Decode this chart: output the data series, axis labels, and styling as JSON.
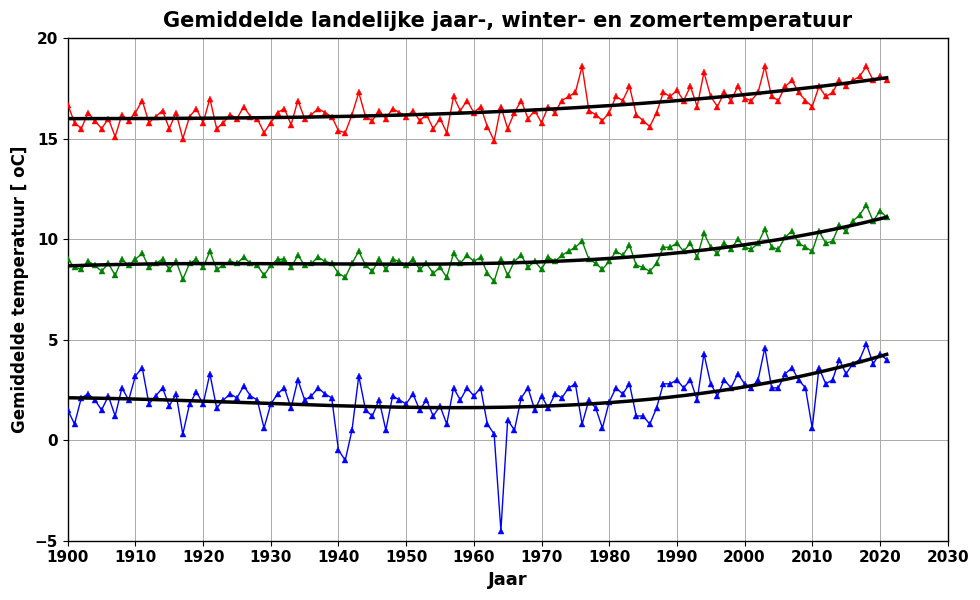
{
  "title": "Gemiddelde landelijke jaar-, winter- en zomertemperatuur",
  "xlabel": "Jaar",
  "ylabel": "Gemiddelde temperatuur [ oC]",
  "xlim": [
    1900,
    2030
  ],
  "ylim": [
    -5,
    20
  ],
  "xticks": [
    1900,
    1910,
    1920,
    1930,
    1940,
    1950,
    1960,
    1970,
    1980,
    1990,
    2000,
    2010,
    2020,
    2030
  ],
  "yticks": [
    -5,
    0,
    5,
    10,
    15,
    20
  ],
  "summer_color": "#FF0000",
  "annual_color": "#008000",
  "winter_color": "#0000FF",
  "trend_color": "#000000",
  "years": [
    1900,
    1901,
    1902,
    1903,
    1904,
    1905,
    1906,
    1907,
    1908,
    1909,
    1910,
    1911,
    1912,
    1913,
    1914,
    1915,
    1916,
    1917,
    1918,
    1919,
    1920,
    1921,
    1922,
    1923,
    1924,
    1925,
    1926,
    1927,
    1928,
    1929,
    1930,
    1931,
    1932,
    1933,
    1934,
    1935,
    1936,
    1937,
    1938,
    1939,
    1940,
    1941,
    1942,
    1943,
    1944,
    1945,
    1946,
    1947,
    1948,
    1949,
    1950,
    1951,
    1952,
    1953,
    1954,
    1955,
    1956,
    1957,
    1958,
    1959,
    1960,
    1961,
    1962,
    1963,
    1964,
    1965,
    1966,
    1967,
    1968,
    1969,
    1970,
    1971,
    1972,
    1973,
    1974,
    1975,
    1976,
    1977,
    1978,
    1979,
    1980,
    1981,
    1982,
    1983,
    1984,
    1985,
    1986,
    1987,
    1988,
    1989,
    1990,
    1991,
    1992,
    1993,
    1994,
    1995,
    1996,
    1997,
    1998,
    1999,
    2000,
    2001,
    2002,
    2003,
    2004,
    2005,
    2006,
    2007,
    2008,
    2009,
    2010,
    2011,
    2012,
    2013,
    2014,
    2015,
    2016,
    2017,
    2018,
    2019,
    2020,
    2021
  ],
  "summer": [
    16.7,
    15.8,
    15.5,
    16.3,
    15.9,
    15.5,
    16.0,
    15.1,
    16.2,
    15.9,
    16.3,
    16.9,
    15.8,
    16.1,
    16.4,
    15.5,
    16.3,
    15.0,
    16.1,
    16.5,
    15.8,
    17.0,
    15.5,
    15.8,
    16.2,
    16.0,
    16.6,
    16.1,
    16.0,
    15.3,
    15.8,
    16.3,
    16.5,
    15.7,
    16.9,
    16.0,
    16.2,
    16.5,
    16.3,
    16.1,
    15.4,
    15.3,
    16.2,
    17.3,
    16.1,
    15.9,
    16.4,
    16.0,
    16.5,
    16.3,
    16.1,
    16.4,
    15.9,
    16.2,
    15.5,
    16.0,
    15.3,
    17.1,
    16.4,
    16.9,
    16.3,
    16.6,
    15.6,
    14.9,
    16.6,
    15.5,
    16.3,
    16.9,
    16.0,
    16.4,
    15.8,
    16.6,
    16.3,
    16.9,
    17.1,
    17.3,
    18.6,
    16.4,
    16.2,
    15.9,
    16.3,
    17.1,
    16.9,
    17.6,
    16.2,
    15.9,
    15.6,
    16.3,
    17.3,
    17.1,
    17.4,
    16.9,
    17.6,
    16.6,
    18.3,
    17.1,
    16.6,
    17.3,
    16.9,
    17.6,
    17.0,
    16.9,
    17.3,
    18.6,
    17.1,
    16.9,
    17.6,
    17.9,
    17.3,
    16.9,
    16.6,
    17.6,
    17.1,
    17.3,
    17.9,
    17.6,
    17.9,
    18.1,
    18.6,
    17.9,
    18.1,
    17.9
  ],
  "annual": [
    9.0,
    8.6,
    8.5,
    8.9,
    8.7,
    8.4,
    8.8,
    8.2,
    9.0,
    8.7,
    9.0,
    9.3,
    8.6,
    8.8,
    9.0,
    8.5,
    8.9,
    8.0,
    8.8,
    9.0,
    8.6,
    9.4,
    8.5,
    8.7,
    8.9,
    8.8,
    9.1,
    8.8,
    8.7,
    8.2,
    8.7,
    9.0,
    9.0,
    8.6,
    9.2,
    8.7,
    8.8,
    9.1,
    8.9,
    8.8,
    8.3,
    8.1,
    8.8,
    9.4,
    8.7,
    8.4,
    9.0,
    8.5,
    9.0,
    8.9,
    8.7,
    9.0,
    8.5,
    8.8,
    8.3,
    8.6,
    8.1,
    9.3,
    8.8,
    9.2,
    8.9,
    9.1,
    8.3,
    7.9,
    9.0,
    8.2,
    8.9,
    9.2,
    8.6,
    8.9,
    8.5,
    9.1,
    8.9,
    9.2,
    9.4,
    9.6,
    9.9,
    9.0,
    8.8,
    8.5,
    8.9,
    9.4,
    9.2,
    9.7,
    8.7,
    8.6,
    8.4,
    8.8,
    9.6,
    9.6,
    9.8,
    9.4,
    9.8,
    9.1,
    10.3,
    9.6,
    9.3,
    9.8,
    9.5,
    10.0,
    9.6,
    9.5,
    9.8,
    10.5,
    9.6,
    9.5,
    10.1,
    10.4,
    9.8,
    9.6,
    9.4,
    10.4,
    9.8,
    9.9,
    10.7,
    10.4,
    10.9,
    11.2,
    11.7,
    10.9,
    11.4,
    11.1
  ],
  "winter": [
    1.5,
    0.8,
    2.1,
    2.3,
    2.0,
    1.5,
    2.2,
    1.2,
    2.6,
    2.0,
    3.2,
    3.6,
    1.8,
    2.2,
    2.6,
    1.7,
    2.3,
    0.3,
    1.8,
    2.4,
    1.8,
    3.3,
    1.6,
    2.0,
    2.3,
    2.1,
    2.7,
    2.2,
    2.0,
    0.6,
    1.8,
    2.3,
    2.6,
    1.6,
    3.0,
    2.0,
    2.2,
    2.6,
    2.3,
    2.1,
    -0.5,
    -1.0,
    0.5,
    3.2,
    1.5,
    1.2,
    2.0,
    0.5,
    2.2,
    2.0,
    1.8,
    2.3,
    1.5,
    2.0,
    1.2,
    1.7,
    0.8,
    2.6,
    2.0,
    2.6,
    2.2,
    2.6,
    0.8,
    0.3,
    -4.5,
    1.0,
    0.5,
    2.1,
    2.6,
    1.5,
    2.2,
    1.6,
    2.3,
    2.1,
    2.6,
    2.8,
    0.8,
    2.0,
    1.6,
    0.6,
    1.9,
    2.6,
    2.3,
    2.8,
    1.2,
    1.2,
    0.8,
    1.6,
    2.8,
    2.8,
    3.0,
    2.6,
    3.0,
    2.0,
    4.3,
    2.8,
    2.2,
    3.0,
    2.6,
    3.3,
    2.8,
    2.6,
    3.0,
    4.6,
    2.6,
    2.6,
    3.3,
    3.6,
    3.0,
    2.6,
    0.6,
    3.6,
    2.8,
    3.0,
    4.0,
    3.3,
    3.8,
    4.0,
    4.8,
    3.8,
    4.3,
    4.0
  ]
}
